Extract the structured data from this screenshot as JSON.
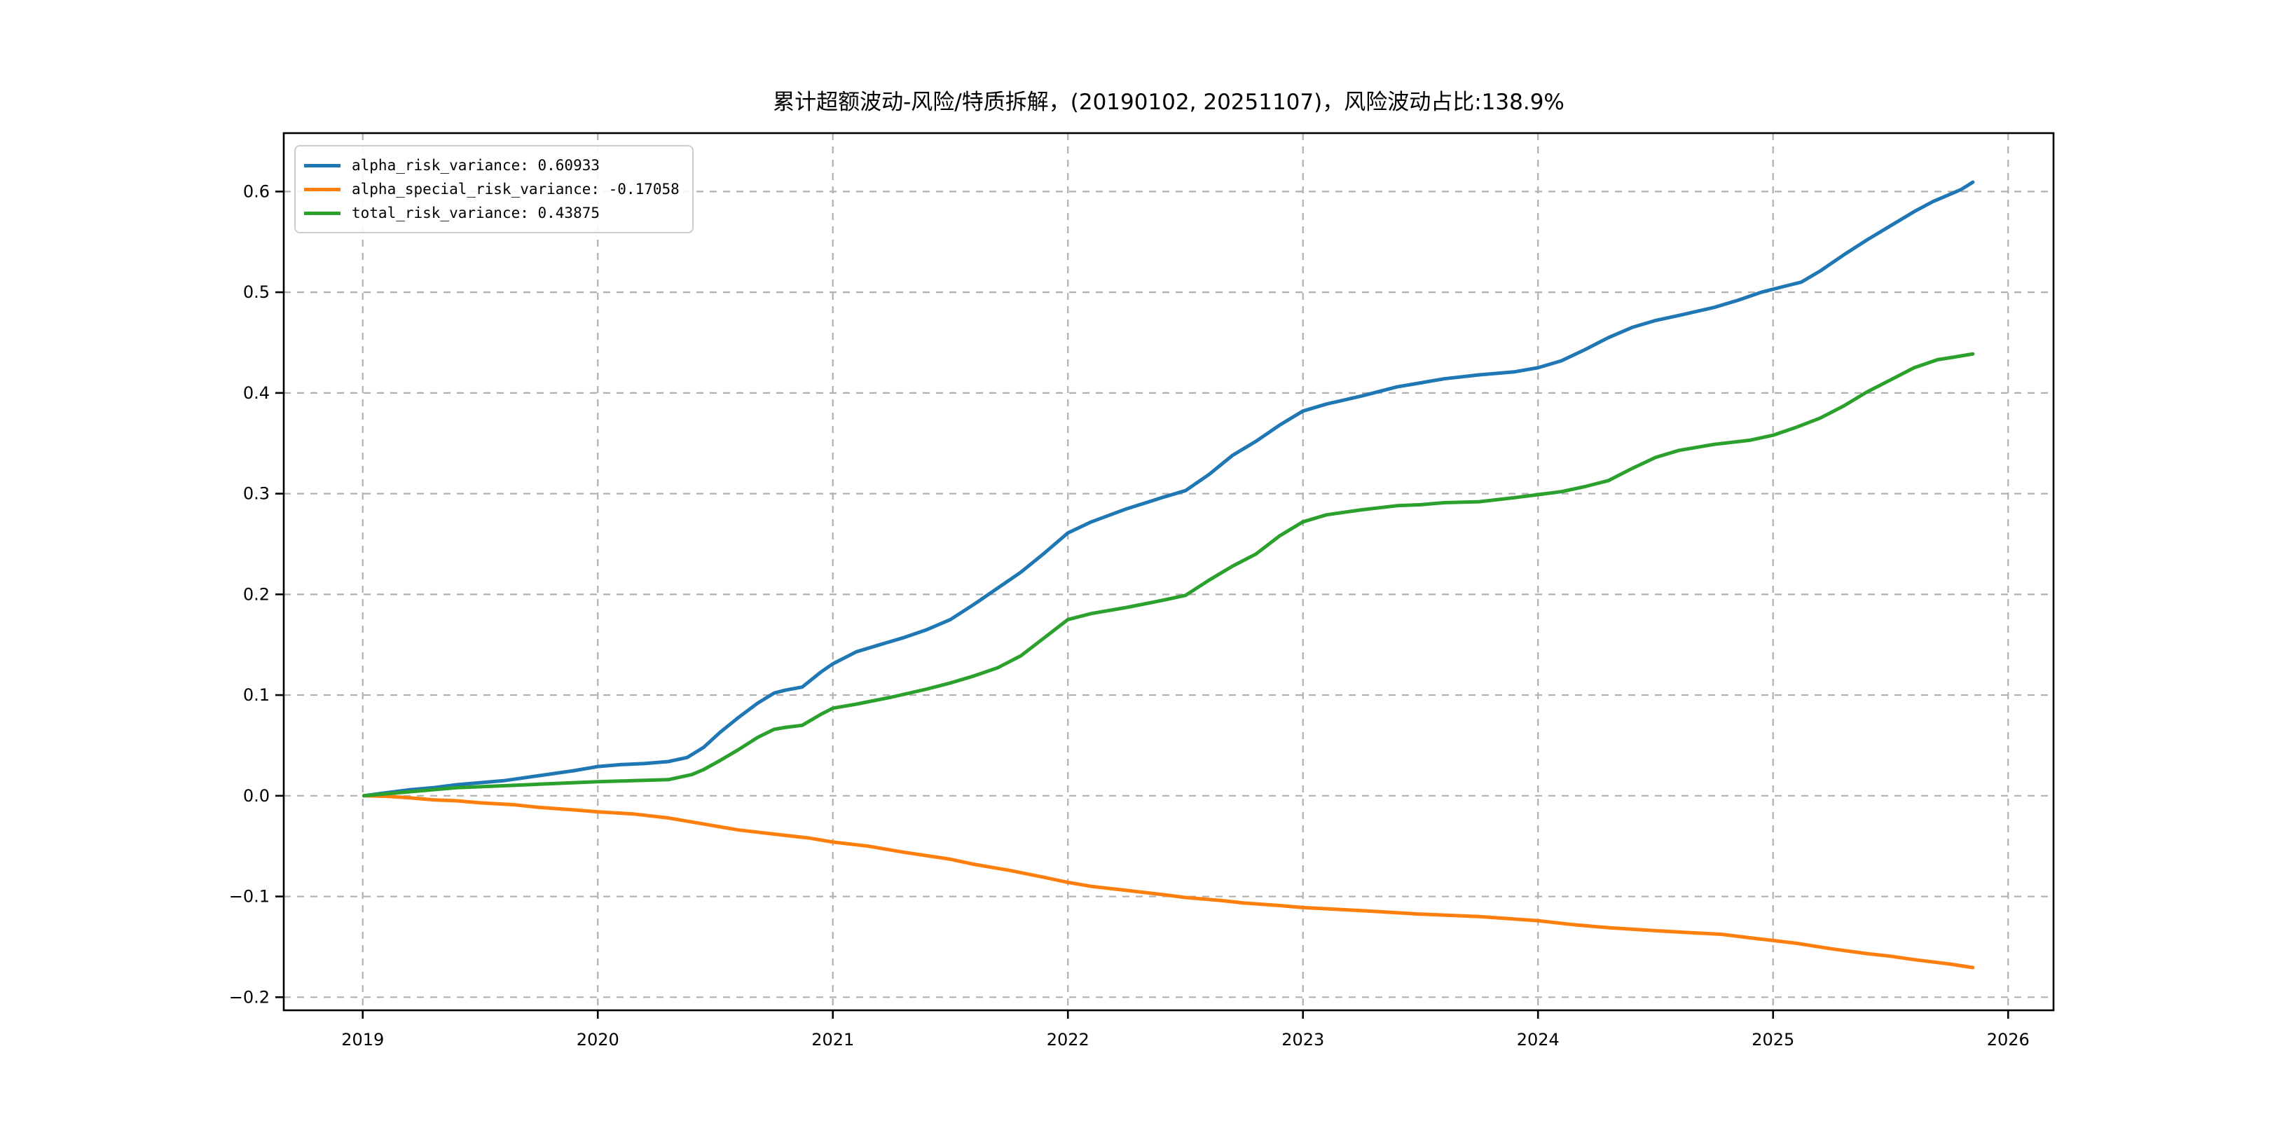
{
  "chart_data": {
    "type": "line",
    "title": "累计超额波动-风险/特质拆解，(20190102, 20251107)，风险波动占比:138.9%",
    "xlabel": "",
    "ylabel": "",
    "grid": true,
    "grid_color": "#b0b0b0",
    "spine_color": "#000000",
    "legend_position": "upper left",
    "xlim": [
      2018.664,
      2026.193
    ],
    "ylim": [
      -0.213,
      0.658
    ],
    "x_tick_values": [
      2019,
      2020,
      2021,
      2022,
      2023,
      2024,
      2025,
      2026
    ],
    "x_tick_labels": [
      "2019",
      "2020",
      "2021",
      "2022",
      "2023",
      "2024",
      "2025",
      "2026"
    ],
    "y_tick_values": [
      -0.2,
      -0.1,
      0.0,
      0.1,
      0.2,
      0.3,
      0.4,
      0.5,
      0.6
    ],
    "y_tick_labels": [
      "−0.2",
      "−0.1",
      "0.0",
      "0.1",
      "0.2",
      "0.3",
      "0.4",
      "0.5",
      "0.6"
    ],
    "legend": {
      "entries": [
        {
          "label": "alpha_risk_variance: 0.60933",
          "color": "#1f77b4"
        },
        {
          "label": "alpha_special_risk_variance: -0.17058",
          "color": "#ff7f0e"
        },
        {
          "label": "total_risk_variance: 0.43875",
          "color": "#2ca02c"
        }
      ]
    },
    "series": [
      {
        "name": "alpha_risk_variance",
        "color": "#1f77b4",
        "end_value": 0.60933,
        "points": [
          [
            2019.005,
            0.0
          ],
          [
            2019.1,
            0.003
          ],
          [
            2019.2,
            0.006
          ],
          [
            2019.3,
            0.008
          ],
          [
            2019.4,
            0.011
          ],
          [
            2019.5,
            0.013
          ],
          [
            2019.6,
            0.015
          ],
          [
            2019.75,
            0.02
          ],
          [
            2019.9,
            0.025
          ],
          [
            2020.0,
            0.029
          ],
          [
            2020.1,
            0.031
          ],
          [
            2020.2,
            0.032
          ],
          [
            2020.3,
            0.034
          ],
          [
            2020.38,
            0.038
          ],
          [
            2020.45,
            0.048
          ],
          [
            2020.52,
            0.063
          ],
          [
            2020.6,
            0.078
          ],
          [
            2020.68,
            0.092
          ],
          [
            2020.75,
            0.102
          ],
          [
            2020.8,
            0.105
          ],
          [
            2020.87,
            0.108
          ],
          [
            2020.95,
            0.123
          ],
          [
            2021.0,
            0.131
          ],
          [
            2021.1,
            0.143
          ],
          [
            2021.2,
            0.15
          ],
          [
            2021.3,
            0.157
          ],
          [
            2021.4,
            0.165
          ],
          [
            2021.5,
            0.175
          ],
          [
            2021.6,
            0.19
          ],
          [
            2021.7,
            0.206
          ],
          [
            2021.8,
            0.222
          ],
          [
            2021.9,
            0.241
          ],
          [
            2022.0,
            0.261
          ],
          [
            2022.1,
            0.272
          ],
          [
            2022.25,
            0.285
          ],
          [
            2022.4,
            0.296
          ],
          [
            2022.5,
            0.303
          ],
          [
            2022.6,
            0.319
          ],
          [
            2022.7,
            0.338
          ],
          [
            2022.8,
            0.352
          ],
          [
            2022.9,
            0.368
          ],
          [
            2023.0,
            0.382
          ],
          [
            2023.1,
            0.389
          ],
          [
            2023.25,
            0.397
          ],
          [
            2023.4,
            0.406
          ],
          [
            2023.5,
            0.41
          ],
          [
            2023.6,
            0.414
          ],
          [
            2023.75,
            0.418
          ],
          [
            2023.9,
            0.421
          ],
          [
            2024.0,
            0.425
          ],
          [
            2024.1,
            0.432
          ],
          [
            2024.2,
            0.443
          ],
          [
            2024.3,
            0.455
          ],
          [
            2024.4,
            0.465
          ],
          [
            2024.5,
            0.472
          ],
          [
            2024.6,
            0.477
          ],
          [
            2024.75,
            0.485
          ],
          [
            2024.85,
            0.492
          ],
          [
            2024.95,
            0.5
          ],
          [
            2025.05,
            0.506
          ],
          [
            2025.12,
            0.51
          ],
          [
            2025.2,
            0.521
          ],
          [
            2025.3,
            0.537
          ],
          [
            2025.4,
            0.552
          ],
          [
            2025.5,
            0.566
          ],
          [
            2025.6,
            0.58
          ],
          [
            2025.68,
            0.59
          ],
          [
            2025.75,
            0.597
          ],
          [
            2025.8,
            0.602
          ],
          [
            2025.85,
            0.60933
          ]
        ]
      },
      {
        "name": "alpha_special_risk_variance",
        "color": "#ff7f0e",
        "end_value": -0.17058,
        "points": [
          [
            2019.005,
            0.0
          ],
          [
            2019.1,
            -0.0005
          ],
          [
            2019.2,
            -0.002
          ],
          [
            2019.3,
            -0.004
          ],
          [
            2019.4,
            -0.005
          ],
          [
            2019.5,
            -0.007
          ],
          [
            2019.65,
            -0.009
          ],
          [
            2019.75,
            -0.0115
          ],
          [
            2019.9,
            -0.014
          ],
          [
            2020.0,
            -0.016
          ],
          [
            2020.15,
            -0.018
          ],
          [
            2020.3,
            -0.022
          ],
          [
            2020.4,
            -0.026
          ],
          [
            2020.5,
            -0.03
          ],
          [
            2020.6,
            -0.034
          ],
          [
            2020.75,
            -0.038
          ],
          [
            2020.9,
            -0.042
          ],
          [
            2021.0,
            -0.046
          ],
          [
            2021.15,
            -0.05
          ],
          [
            2021.3,
            -0.056
          ],
          [
            2021.5,
            -0.063
          ],
          [
            2021.6,
            -0.068
          ],
          [
            2021.75,
            -0.074
          ],
          [
            2021.9,
            -0.081
          ],
          [
            2022.0,
            -0.086
          ],
          [
            2022.1,
            -0.09
          ],
          [
            2022.25,
            -0.094
          ],
          [
            2022.4,
            -0.098
          ],
          [
            2022.5,
            -0.101
          ],
          [
            2022.65,
            -0.104
          ],
          [
            2022.75,
            -0.1065
          ],
          [
            2022.9,
            -0.109
          ],
          [
            2023.0,
            -0.111
          ],
          [
            2023.25,
            -0.114
          ],
          [
            2023.5,
            -0.1175
          ],
          [
            2023.75,
            -0.12
          ],
          [
            2024.0,
            -0.124
          ],
          [
            2024.15,
            -0.128
          ],
          [
            2024.3,
            -0.131
          ],
          [
            2024.5,
            -0.134
          ],
          [
            2024.65,
            -0.136
          ],
          [
            2024.78,
            -0.1375
          ],
          [
            2024.9,
            -0.141
          ],
          [
            2025.0,
            -0.1437
          ],
          [
            2025.1,
            -0.1465
          ],
          [
            2025.25,
            -0.152
          ],
          [
            2025.4,
            -0.1567
          ],
          [
            2025.5,
            -0.1593
          ],
          [
            2025.6,
            -0.1627
          ],
          [
            2025.75,
            -0.167
          ],
          [
            2025.85,
            -0.17058
          ]
        ]
      },
      {
        "name": "total_risk_variance",
        "color": "#2ca02c",
        "end_value": 0.43875,
        "points": [
          [
            2019.005,
            0.0
          ],
          [
            2019.1,
            0.002
          ],
          [
            2019.25,
            0.005
          ],
          [
            2019.4,
            0.008
          ],
          [
            2019.5,
            0.009
          ],
          [
            2019.6,
            0.01
          ],
          [
            2019.75,
            0.0115
          ],
          [
            2019.9,
            0.013
          ],
          [
            2020.0,
            0.014
          ],
          [
            2020.15,
            0.015
          ],
          [
            2020.3,
            0.016
          ],
          [
            2020.4,
            0.021
          ],
          [
            2020.45,
            0.026
          ],
          [
            2020.52,
            0.035
          ],
          [
            2020.6,
            0.046
          ],
          [
            2020.68,
            0.058
          ],
          [
            2020.75,
            0.066
          ],
          [
            2020.8,
            0.068
          ],
          [
            2020.87,
            0.07
          ],
          [
            2020.95,
            0.081
          ],
          [
            2021.0,
            0.087
          ],
          [
            2021.1,
            0.091
          ],
          [
            2021.25,
            0.098
          ],
          [
            2021.4,
            0.106
          ],
          [
            2021.5,
            0.112
          ],
          [
            2021.6,
            0.119
          ],
          [
            2021.7,
            0.127
          ],
          [
            2021.8,
            0.139
          ],
          [
            2021.9,
            0.157
          ],
          [
            2022.0,
            0.175
          ],
          [
            2022.1,
            0.181
          ],
          [
            2022.25,
            0.187
          ],
          [
            2022.4,
            0.194
          ],
          [
            2022.5,
            0.199
          ],
          [
            2022.6,
            0.214
          ],
          [
            2022.7,
            0.228
          ],
          [
            2022.8,
            0.24
          ],
          [
            2022.9,
            0.258
          ],
          [
            2023.0,
            0.272
          ],
          [
            2023.1,
            0.279
          ],
          [
            2023.25,
            0.284
          ],
          [
            2023.4,
            0.288
          ],
          [
            2023.5,
            0.289
          ],
          [
            2023.6,
            0.291
          ],
          [
            2023.75,
            0.292
          ],
          [
            2023.9,
            0.296
          ],
          [
            2024.0,
            0.299
          ],
          [
            2024.1,
            0.302
          ],
          [
            2024.2,
            0.307
          ],
          [
            2024.3,
            0.313
          ],
          [
            2024.4,
            0.325
          ],
          [
            2024.5,
            0.336
          ],
          [
            2024.6,
            0.343
          ],
          [
            2024.75,
            0.349
          ],
          [
            2024.9,
            0.353
          ],
          [
            2025.0,
            0.358
          ],
          [
            2025.1,
            0.366
          ],
          [
            2025.2,
            0.375
          ],
          [
            2025.3,
            0.387
          ],
          [
            2025.4,
            0.401
          ],
          [
            2025.5,
            0.413
          ],
          [
            2025.6,
            0.425
          ],
          [
            2025.7,
            0.433
          ],
          [
            2025.78,
            0.436
          ],
          [
            2025.85,
            0.43875
          ]
        ]
      }
    ]
  }
}
